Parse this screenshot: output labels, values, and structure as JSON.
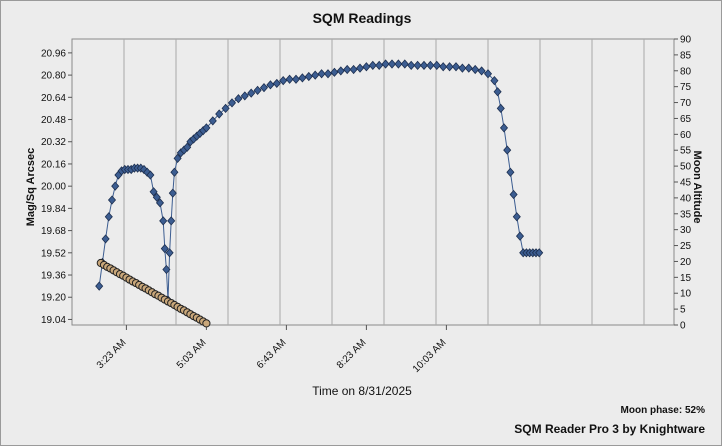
{
  "chart_data": {
    "type": "scatter",
    "title": "SQM Readings",
    "xlabel": "Time on 8/31/2025",
    "ylabel_left": "Mag/Sq Arcsec",
    "ylabel_right": "Moon Altitude",
    "x_ticks": [
      "3:23 AM",
      "5:03 AM",
      "6:43 AM",
      "8:23 AM",
      "10:03 AM"
    ],
    "y_left_ticks": [
      "19.04",
      "19.20",
      "19.36",
      "19.52",
      "19.68",
      "19.84",
      "20.00",
      "20.16",
      "20.32",
      "20.48",
      "20.64",
      "20.80",
      "20.96"
    ],
    "y_right_ticks": [
      "0",
      "5",
      "10",
      "15",
      "20",
      "25",
      "30",
      "35",
      "40",
      "45",
      "50",
      "55",
      "60",
      "65",
      "70",
      "75",
      "80",
      "85",
      "90"
    ],
    "y_left_range": [
      19.0,
      21.06
    ],
    "y_right_range": [
      0,
      90
    ],
    "grid": true,
    "series": [
      {
        "color": "#3c5d91",
        "marker": "diamond",
        "x": [
          "2:49",
          "2:53",
          "2:57",
          "3:01",
          "3:05",
          "3:09",
          "3:13",
          "3:17",
          "3:21",
          "3:25",
          "3:29",
          "3:33",
          "3:37",
          "3:41",
          "3:45",
          "3:49",
          "3:53",
          "3:57",
          "4:01",
          "4:05",
          "4:09",
          "4:11",
          "4:13",
          "4:15",
          "4:17",
          "4:19",
          "4:21",
          "4:23",
          "4:27",
          "4:31",
          "4:35",
          "4:39",
          "4:43",
          "4:47",
          "4:51",
          "4:55",
          "4:59",
          "5:03",
          "5:11",
          "5:19",
          "5:27",
          "5:35",
          "5:43",
          "5:51",
          "5:59",
          "6:07",
          "6:15",
          "6:23",
          "6:31",
          "6:39",
          "6:47",
          "6:55",
          "7:03",
          "7:11",
          "7:19",
          "7:27",
          "7:35",
          "7:43",
          "7:51",
          "7:59",
          "8:07",
          "8:15",
          "8:23",
          "8:31",
          "8:39",
          "8:47",
          "8:55",
          "9:03",
          "9:11",
          "9:19",
          "9:27",
          "9:35",
          "9:43",
          "9:51",
          "9:59",
          "10:07",
          "10:15",
          "10:23",
          "10:31",
          "10:39",
          "10:47",
          "10:55",
          "11:03",
          "11:07",
          "11:11",
          "11:15",
          "11:19",
          "11:23",
          "11:27",
          "11:31",
          "11:35",
          "11:39",
          "11:43",
          "11:47",
          "11:51",
          "11:55",
          "11:59"
        ],
        "y": [
          19.28,
          19.45,
          19.62,
          19.78,
          19.9,
          20.0,
          20.08,
          20.11,
          20.12,
          20.12,
          20.12,
          20.13,
          20.13,
          20.13,
          20.12,
          20.1,
          20.08,
          19.96,
          19.92,
          19.88,
          19.75,
          19.55,
          19.4,
          19.18,
          19.52,
          19.75,
          19.95,
          20.1,
          20.2,
          20.24,
          20.26,
          20.28,
          20.32,
          20.34,
          20.36,
          20.38,
          20.4,
          20.42,
          20.47,
          20.52,
          20.56,
          20.6,
          20.63,
          20.65,
          20.67,
          20.69,
          20.71,
          20.73,
          20.74,
          20.76,
          20.77,
          20.77,
          20.78,
          20.79,
          20.8,
          20.81,
          20.81,
          20.82,
          20.83,
          20.84,
          20.84,
          20.85,
          20.86,
          20.87,
          20.87,
          20.88,
          20.88,
          20.88,
          20.88,
          20.87,
          20.87,
          20.87,
          20.87,
          20.87,
          20.86,
          20.86,
          20.86,
          20.85,
          20.85,
          20.84,
          20.83,
          20.81,
          20.76,
          20.68,
          20.56,
          20.42,
          20.26,
          20.1,
          19.94,
          19.78,
          19.64,
          19.52,
          19.52,
          19.52,
          19.52,
          19.52,
          19.52
        ]
      },
      {
        "axis": "right",
        "color": "#c9a77a",
        "marker": "circle",
        "x": [
          "2:51",
          "2:55",
          "2:59",
          "3:03",
          "3:07",
          "3:11",
          "3:15",
          "3:19",
          "3:23",
          "3:27",
          "3:31",
          "3:35",
          "3:39",
          "3:43",
          "3:47",
          "3:51",
          "3:55",
          "3:59",
          "4:03",
          "4:07",
          "4:11",
          "4:15",
          "4:19",
          "4:23",
          "4:27",
          "4:31",
          "4:35",
          "4:39",
          "4:43",
          "4:47",
          "4:51",
          "4:55",
          "4:59",
          "5:03"
        ],
        "y": [
          19.5,
          18.9,
          18.3,
          17.8,
          17.2,
          16.6,
          16.0,
          15.5,
          14.9,
          14.3,
          13.7,
          13.2,
          12.6,
          12.0,
          11.5,
          10.9,
          10.3,
          9.7,
          9.2,
          8.6,
          8.0,
          7.4,
          6.9,
          6.3,
          5.7,
          5.1,
          4.6,
          4.0,
          3.4,
          2.8,
          2.3,
          1.7,
          1.1,
          0.5
        ]
      }
    ]
  },
  "moon_phase_text": "Moon phase: 52%",
  "credit_text": "SQM Reader Pro 3 by Knightware"
}
